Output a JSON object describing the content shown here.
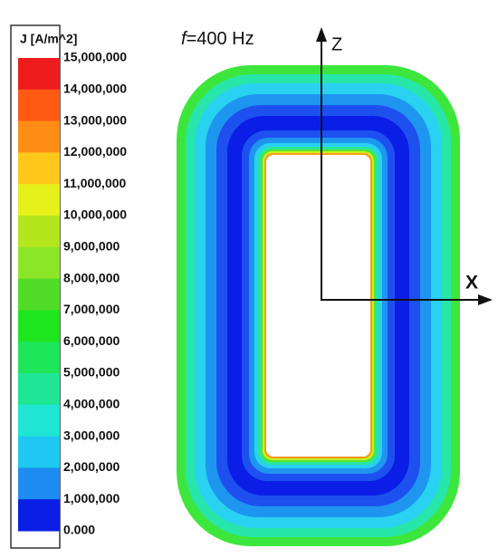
{
  "legend": {
    "title": "J [A/m^2]",
    "labels": [
      "15,000,000",
      "14,000,000",
      "13,000,000",
      "12,000,000",
      "11,000,000",
      "10,000,000",
      "9,000,000",
      "8,000,000",
      "7,000,000",
      "6,000,000",
      "5,000,000",
      "4,000,000",
      "3,000,000",
      "2,000,000",
      "1,000,000",
      "0.000"
    ],
    "colors": [
      "#ee1c1c",
      "#ff5a14",
      "#ff8c14",
      "#ffc81a",
      "#e6f01a",
      "#b4e61e",
      "#8ce628",
      "#50dc28",
      "#1ee61e",
      "#1ee65a",
      "#1ee696",
      "#1ee6d2",
      "#1ec8f0",
      "#1e8cf0",
      "#0a1ee6"
    ]
  },
  "annotation": {
    "variable": "f",
    "text": "=400 Hz"
  },
  "axes": {
    "z": "Z",
    "x": "X"
  }
}
